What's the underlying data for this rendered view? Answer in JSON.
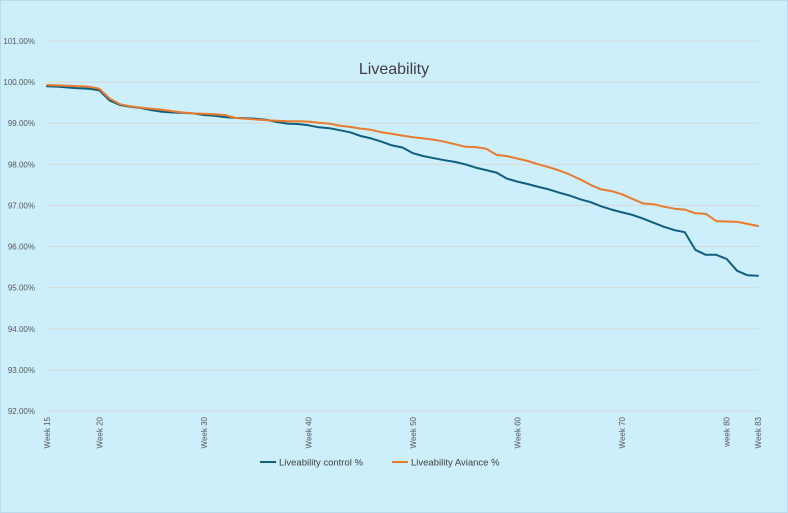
{
  "chart_data": {
    "type": "line",
    "title": "Liveability",
    "xlabel": "",
    "ylabel": "",
    "y_axis": {
      "min": 0.92,
      "max": 1.01,
      "step": 0.01,
      "tick_labels": [
        "92.00%",
        "93.00%",
        "94.00%",
        "95.00%",
        "96.00%",
        "97.00%",
        "98.00%",
        "99.00%",
        "100.00%",
        "101.00%"
      ]
    },
    "x_axis": {
      "min": 15,
      "max": 83,
      "ticks": [
        {
          "value": 15,
          "label": "Week 15"
        },
        {
          "value": 20,
          "label": "Week 20"
        },
        {
          "value": 30,
          "label": "Week 30"
        },
        {
          "value": 40,
          "label": "Week 40"
        },
        {
          "value": 50,
          "label": "Week 50"
        },
        {
          "value": 60,
          "label": "Week 60"
        },
        {
          "value": 70,
          "label": "Week 70"
        },
        {
          "value": 80,
          "label": "week 80"
        },
        {
          "value": 83,
          "label": "Week 83"
        }
      ]
    },
    "grid": true,
    "legend_position": "bottom",
    "x": [
      15,
      16,
      17,
      18,
      19,
      20,
      21,
      22,
      23,
      24,
      25,
      26,
      27,
      28,
      29,
      30,
      31,
      32,
      33,
      34,
      35,
      36,
      37,
      38,
      39,
      40,
      41,
      42,
      43,
      44,
      45,
      46,
      47,
      48,
      49,
      50,
      51,
      52,
      53,
      54,
      55,
      56,
      57,
      58,
      59,
      60,
      61,
      62,
      63,
      64,
      65,
      66,
      67,
      68,
      69,
      70,
      71,
      72,
      73,
      74,
      75,
      76,
      77,
      78,
      79,
      80,
      81,
      82,
      83
    ],
    "series": [
      {
        "name": "Liveability control %",
        "color": "#0f5f80",
        "values": [
          0.999,
          0.9989,
          0.9987,
          0.9985,
          0.9984,
          0.998,
          0.9955,
          0.9944,
          0.994,
          0.9937,
          0.9932,
          0.9928,
          0.9926,
          0.9925,
          0.9924,
          0.992,
          0.9918,
          0.9915,
          0.9913,
          0.9912,
          0.9911,
          0.9908,
          0.9903,
          0.9899,
          0.9898,
          0.9895,
          0.989,
          0.9888,
          0.9883,
          0.9878,
          0.9869,
          0.9863,
          0.9855,
          0.9846,
          0.9841,
          0.9827,
          0.982,
          0.9815,
          0.981,
          0.9806,
          0.98,
          0.9792,
          0.9786,
          0.978,
          0.9765,
          0.9758,
          0.9752,
          0.9745,
          0.9739,
          0.9731,
          0.9724,
          0.9715,
          0.9708,
          0.9698,
          0.969,
          0.9683,
          0.9677,
          0.9668,
          0.9658,
          0.9648,
          0.964,
          0.9635,
          0.9592,
          0.958,
          0.958,
          0.957,
          0.9541,
          0.953,
          0.9529
        ]
      },
      {
        "name": "Liveability Aviance %",
        "color": "#e97b2e",
        "values": [
          0.9993,
          0.9992,
          0.9991,
          0.999,
          0.9989,
          0.9984,
          0.996,
          0.9946,
          0.9941,
          0.9938,
          0.9935,
          0.9933,
          0.9929,
          0.9926,
          0.9924,
          0.9923,
          0.9922,
          0.992,
          0.9913,
          0.9911,
          0.9909,
          0.9907,
          0.9906,
          0.9905,
          0.9905,
          0.9904,
          0.9901,
          0.9899,
          0.9894,
          0.9891,
          0.9887,
          0.9884,
          0.9878,
          0.9874,
          0.987,
          0.9866,
          0.9863,
          0.986,
          0.9855,
          0.9849,
          0.9843,
          0.9842,
          0.9838,
          0.9823,
          0.982,
          0.9814,
          0.9808,
          0.98,
          0.9793,
          0.9785,
          0.9775,
          0.9763,
          0.975,
          0.9739,
          0.9735,
          0.9727,
          0.9716,
          0.9705,
          0.9703,
          0.9697,
          0.9692,
          0.969,
          0.9681,
          0.968,
          0.9662,
          0.9661,
          0.966,
          0.9655,
          0.965
        ]
      }
    ]
  }
}
